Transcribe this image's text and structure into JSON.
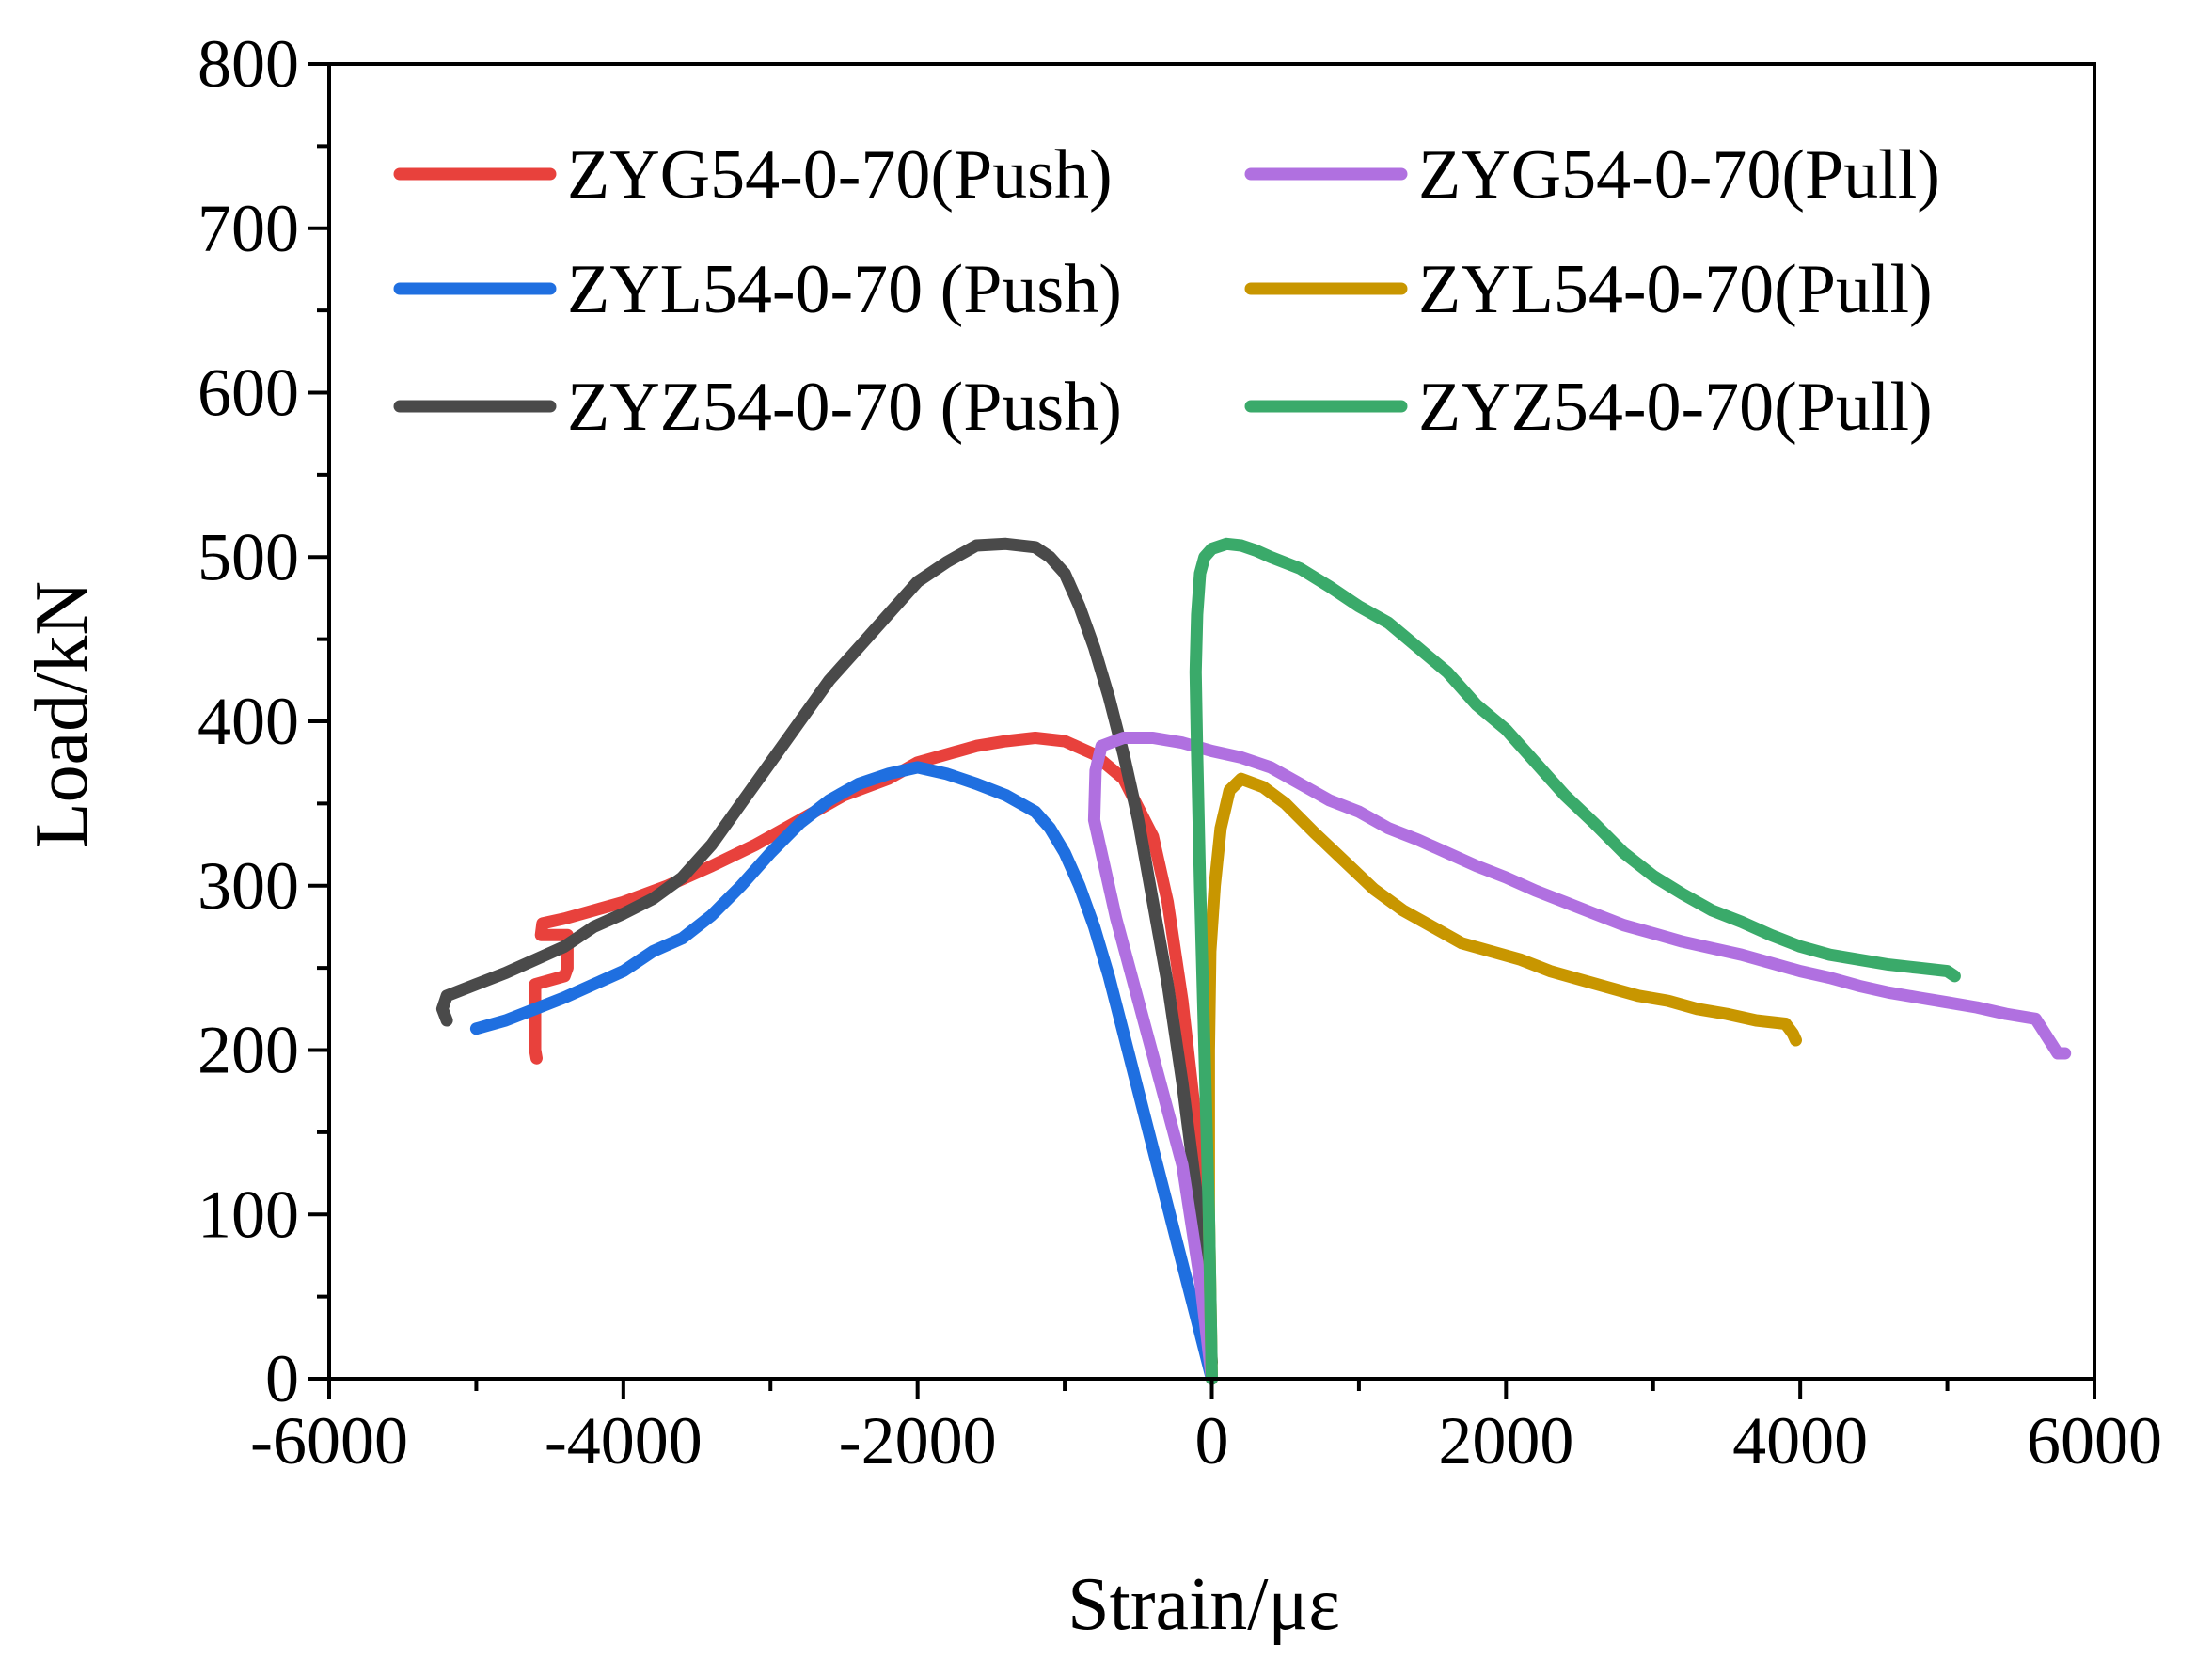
{
  "chart_data": {
    "type": "line",
    "title": "",
    "xlabel": "Strain/με",
    "ylabel": "Load/kN",
    "xlim": [
      -6000,
      6000
    ],
    "ylim": [
      0,
      800
    ],
    "x_ticks": [
      -6000,
      -4000,
      -2000,
      0,
      2000,
      4000,
      6000
    ],
    "x_tick_labels": [
      "-6000",
      "-4000",
      "-2000",
      "0",
      "2000",
      "4000",
      "6000"
    ],
    "y_ticks": [
      0,
      100,
      200,
      300,
      400,
      500,
      600,
      700,
      800
    ],
    "y_tick_labels": [
      "0",
      "100",
      "200",
      "300",
      "400",
      "500",
      "600",
      "700",
      "800"
    ],
    "grid": false,
    "legend_position": "top",
    "series": [
      {
        "name": "ZYG54-0-70(Push)",
        "color": "#e8413c",
        "points": [
          [
            0,
            0
          ],
          [
            -50,
            70
          ],
          [
            -100,
            150
          ],
          [
            -200,
            230
          ],
          [
            -300,
            290
          ],
          [
            -400,
            330
          ],
          [
            -600,
            365
          ],
          [
            -800,
            380
          ],
          [
            -1000,
            388
          ],
          [
            -1200,
            390
          ],
          [
            -1400,
            388
          ],
          [
            -1600,
            385
          ],
          [
            -1800,
            380
          ],
          [
            -2000,
            375
          ],
          [
            -2200,
            365
          ],
          [
            -2500,
            355
          ],
          [
            -2800,
            340
          ],
          [
            -3100,
            325
          ],
          [
            -3400,
            312
          ],
          [
            -3700,
            300
          ],
          [
            -4000,
            290
          ],
          [
            -4200,
            285
          ],
          [
            -4400,
            280
          ],
          [
            -4550,
            277
          ],
          [
            -4560,
            270
          ],
          [
            -4380,
            270
          ],
          [
            -4380,
            250
          ],
          [
            -4400,
            245
          ],
          [
            -4600,
            240
          ],
          [
            -4600,
            200
          ],
          [
            -4590,
            195
          ]
        ]
      },
      {
        "name": "ZYL54-0-70 (Push)",
        "color": "#1f6fe0",
        "points": [
          [
            0,
            0
          ],
          [
            -100,
            35
          ],
          [
            -200,
            70
          ],
          [
            -300,
            105
          ],
          [
            -400,
            140
          ],
          [
            -500,
            175
          ],
          [
            -600,
            210
          ],
          [
            -700,
            245
          ],
          [
            -800,
            275
          ],
          [
            -900,
            300
          ],
          [
            -1000,
            320
          ],
          [
            -1100,
            335
          ],
          [
            -1200,
            345
          ],
          [
            -1400,
            355
          ],
          [
            -1600,
            362
          ],
          [
            -1800,
            368
          ],
          [
            -2000,
            372
          ],
          [
            -2200,
            368
          ],
          [
            -2400,
            362
          ],
          [
            -2600,
            352
          ],
          [
            -2800,
            338
          ],
          [
            -3000,
            320
          ],
          [
            -3200,
            300
          ],
          [
            -3400,
            282
          ],
          [
            -3600,
            268
          ],
          [
            -3800,
            260
          ],
          [
            -4000,
            248
          ],
          [
            -4200,
            240
          ],
          [
            -4400,
            232
          ],
          [
            -4600,
            225
          ],
          [
            -4800,
            218
          ],
          [
            -5000,
            213
          ]
        ]
      },
      {
        "name": "ZYZ54-0-70 (Push)",
        "color": "#4a4a4a",
        "points": [
          [
            0,
            10
          ],
          [
            -50,
            60
          ],
          [
            -100,
            110
          ],
          [
            -200,
            180
          ],
          [
            -300,
            240
          ],
          [
            -400,
            290
          ],
          [
            -500,
            340
          ],
          [
            -600,
            380
          ],
          [
            -700,
            415
          ],
          [
            -800,
            445
          ],
          [
            -900,
            470
          ],
          [
            -1000,
            490
          ],
          [
            -1100,
            500
          ],
          [
            -1200,
            506
          ],
          [
            -1400,
            508
          ],
          [
            -1600,
            507
          ],
          [
            -1800,
            497
          ],
          [
            -2000,
            485
          ],
          [
            -2200,
            465
          ],
          [
            -2400,
            445
          ],
          [
            -2600,
            425
          ],
          [
            -2800,
            400
          ],
          [
            -3000,
            375
          ],
          [
            -3200,
            350
          ],
          [
            -3400,
            325
          ],
          [
            -3600,
            305
          ],
          [
            -3800,
            292
          ],
          [
            -4000,
            283
          ],
          [
            -4200,
            275
          ],
          [
            -4400,
            263
          ],
          [
            -4600,
            255
          ],
          [
            -4800,
            247
          ],
          [
            -5000,
            240
          ],
          [
            -5200,
            233
          ],
          [
            -5230,
            225
          ],
          [
            -5200,
            218
          ]
        ]
      },
      {
        "name": "ZYG54-0-70(Pull)",
        "color": "#b070e0",
        "points": [
          [
            0,
            0
          ],
          [
            -80,
            60
          ],
          [
            -200,
            130
          ],
          [
            -350,
            180
          ],
          [
            -500,
            230
          ],
          [
            -650,
            280
          ],
          [
            -750,
            320
          ],
          [
            -800,
            340
          ],
          [
            -790,
            370
          ],
          [
            -750,
            385
          ],
          [
            -600,
            390
          ],
          [
            -400,
            390
          ],
          [
            -200,
            387
          ],
          [
            0,
            382
          ],
          [
            200,
            378
          ],
          [
            400,
            372
          ],
          [
            600,
            362
          ],
          [
            800,
            352
          ],
          [
            1000,
            345
          ],
          [
            1200,
            335
          ],
          [
            1400,
            328
          ],
          [
            1600,
            320
          ],
          [
            1800,
            312
          ],
          [
            2000,
            305
          ],
          [
            2200,
            297
          ],
          [
            2400,
            290
          ],
          [
            2600,
            283
          ],
          [
            2800,
            276
          ],
          [
            3000,
            271
          ],
          [
            3200,
            266
          ],
          [
            3400,
            262
          ],
          [
            3600,
            258
          ],
          [
            3800,
            253
          ],
          [
            4000,
            248
          ],
          [
            4200,
            244
          ],
          [
            4400,
            239
          ],
          [
            4600,
            235
          ],
          [
            4800,
            232
          ],
          [
            5000,
            229
          ],
          [
            5200,
            226
          ],
          [
            5400,
            222
          ],
          [
            5600,
            219
          ],
          [
            5700,
            205
          ],
          [
            5750,
            198
          ],
          [
            5800,
            198
          ]
        ]
      },
      {
        "name": "ZYL54-0-70(Pull)",
        "color": "#c89600",
        "points": [
          [
            0,
            0
          ],
          [
            -20,
            100
          ],
          [
            -20,
            200
          ],
          [
            -10,
            260
          ],
          [
            20,
            300
          ],
          [
            60,
            335
          ],
          [
            120,
            358
          ],
          [
            200,
            365
          ],
          [
            350,
            360
          ],
          [
            500,
            350
          ],
          [
            700,
            332
          ],
          [
            900,
            315
          ],
          [
            1100,
            298
          ],
          [
            1300,
            285
          ],
          [
            1500,
            275
          ],
          [
            1700,
            265
          ],
          [
            1900,
            260
          ],
          [
            2100,
            255
          ],
          [
            2300,
            248
          ],
          [
            2500,
            243
          ],
          [
            2700,
            238
          ],
          [
            2900,
            233
          ],
          [
            3100,
            230
          ],
          [
            3300,
            225
          ],
          [
            3500,
            222
          ],
          [
            3700,
            218
          ],
          [
            3900,
            216
          ],
          [
            3950,
            210
          ],
          [
            3970,
            206
          ]
        ]
      },
      {
        "name": "ZYZ54-0-70(Pull)",
        "color": "#3aaa6a",
        "points": [
          [
            0,
            0
          ],
          [
            -20,
            100
          ],
          [
            -50,
            200
          ],
          [
            -80,
            300
          ],
          [
            -100,
            380
          ],
          [
            -110,
            430
          ],
          [
            -100,
            465
          ],
          [
            -80,
            490
          ],
          [
            -50,
            500
          ],
          [
            0,
            505
          ],
          [
            100,
            508
          ],
          [
            200,
            507
          ],
          [
            300,
            504
          ],
          [
            400,
            500
          ],
          [
            600,
            493
          ],
          [
            800,
            482
          ],
          [
            1000,
            470
          ],
          [
            1200,
            460
          ],
          [
            1400,
            445
          ],
          [
            1600,
            430
          ],
          [
            1800,
            410
          ],
          [
            2000,
            395
          ],
          [
            2200,
            375
          ],
          [
            2400,
            355
          ],
          [
            2600,
            338
          ],
          [
            2800,
            320
          ],
          [
            3000,
            306
          ],
          [
            3200,
            295
          ],
          [
            3400,
            285
          ],
          [
            3600,
            278
          ],
          [
            3800,
            270
          ],
          [
            4000,
            263
          ],
          [
            4200,
            258
          ],
          [
            4400,
            255
          ],
          [
            4600,
            252
          ],
          [
            4800,
            250
          ],
          [
            5000,
            248
          ],
          [
            5050,
            245
          ]
        ]
      }
    ]
  }
}
